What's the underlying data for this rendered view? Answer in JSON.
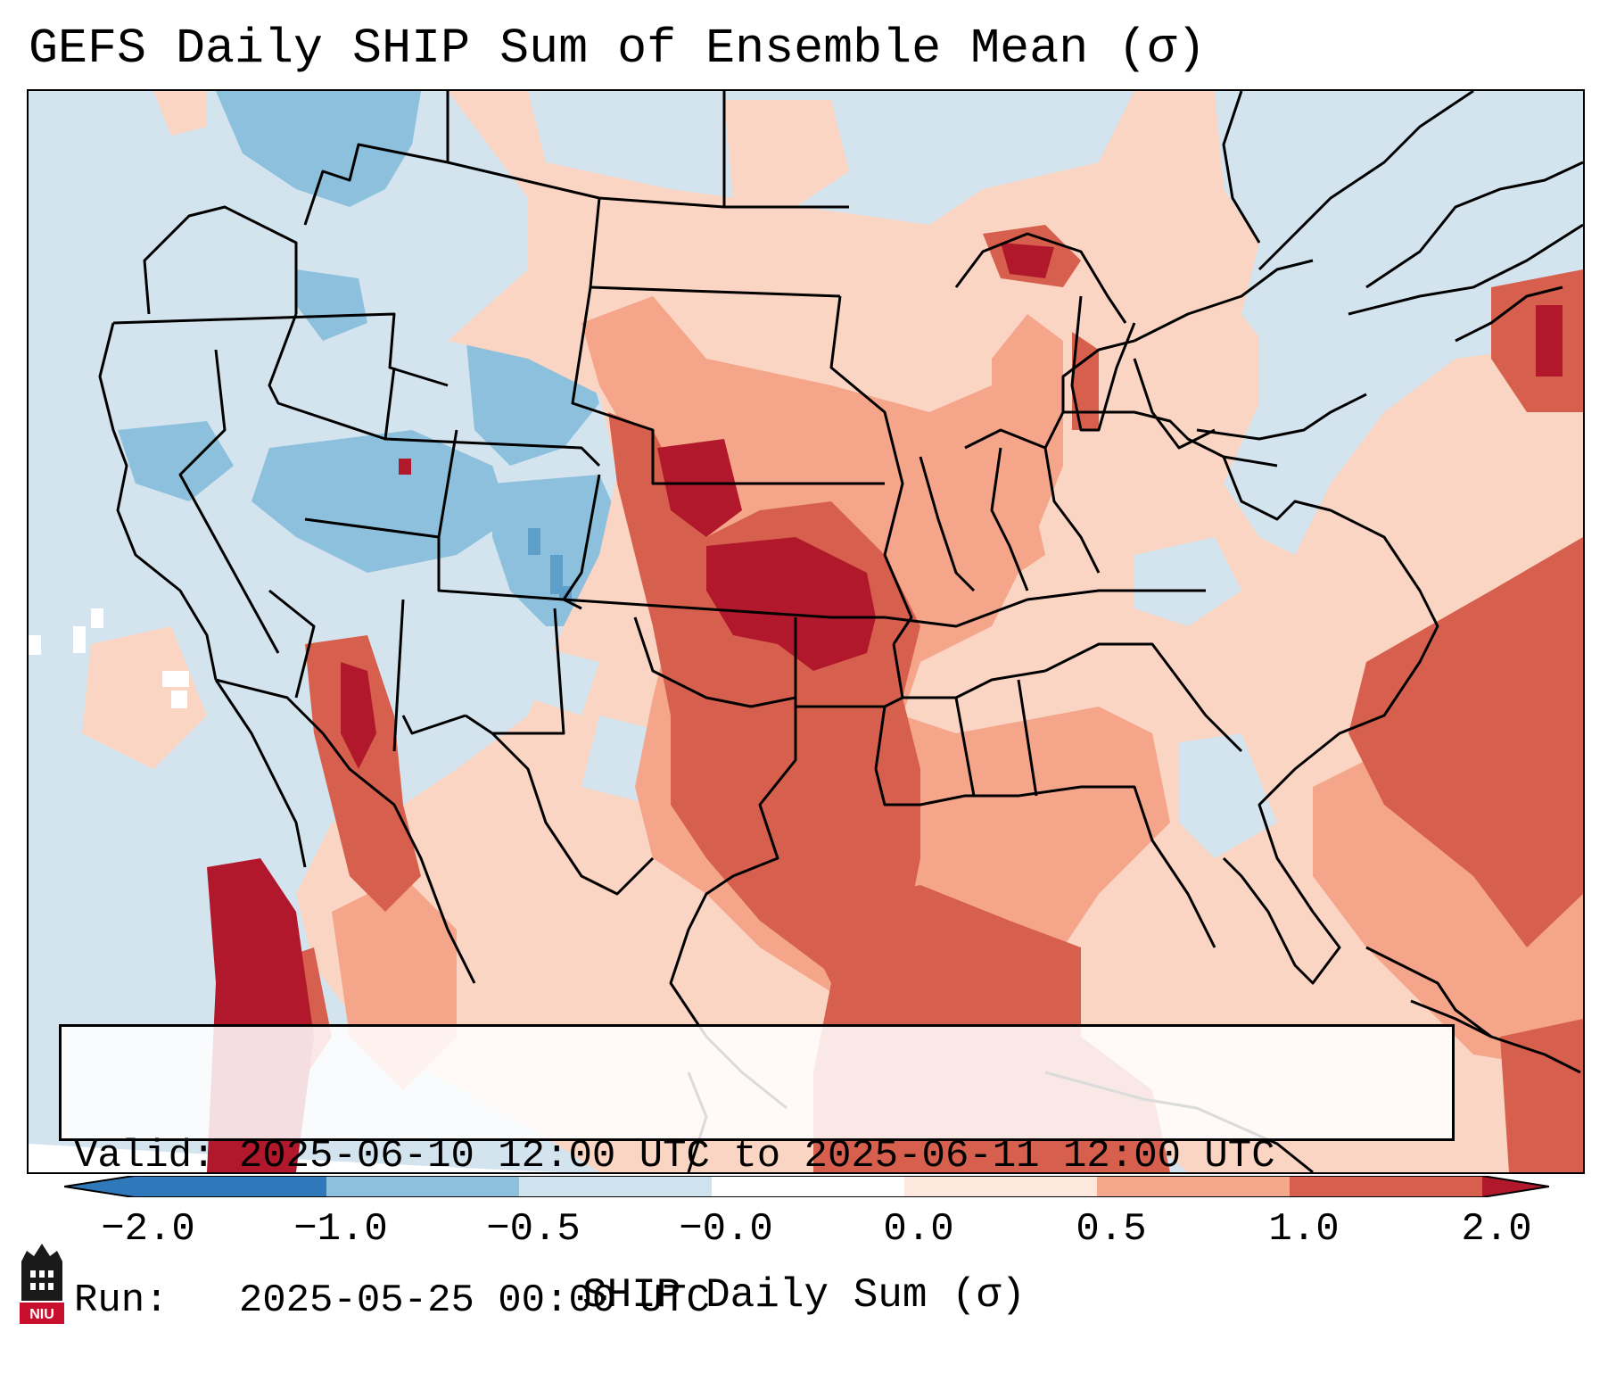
{
  "title": "GEFS Daily SHIP Sum of Ensemble Mean (σ)",
  "info": {
    "valid": "Valid: 2025-06-10 12:00 UTC to 2025-06-11 12:00 UTC",
    "run": "Run:   2025-05-25 00:00 UTC"
  },
  "colorbar": {
    "label": "SHIP Daily Sum (σ)",
    "ticks": [
      "−2.0",
      "−1.0",
      "−0.5",
      "−0.0",
      "0.0",
      "0.5",
      "1.0",
      "2.0"
    ],
    "colors": [
      "#2f78b9",
      "#8cc0dc",
      "#cfe3ee",
      "#eef5f9",
      "#fce8dd",
      "#f5a98c",
      "#d6604d",
      "#b2182b"
    ],
    "extend": "both"
  },
  "logo": {
    "text": "NIU"
  },
  "colors": {
    "ocean_background": "#d4e4ef",
    "neutral_blue": "#d4e4ef",
    "light_blue": "#8cc0dc",
    "mid_blue": "#5d9fc9",
    "light_red": "#fbd5c3",
    "salmon": "#f4a58a",
    "red": "#d6604d",
    "dark_red": "#b2182b",
    "boundary": "#000000"
  }
}
